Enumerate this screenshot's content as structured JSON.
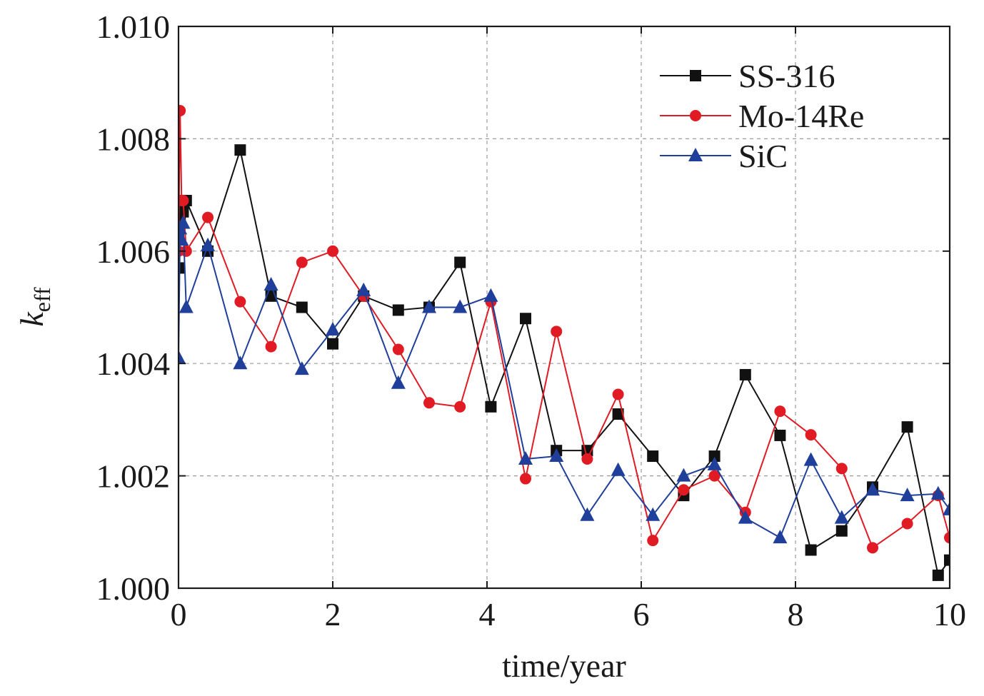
{
  "chart_data": {
    "type": "line",
    "xlabel": "time/year",
    "ylabel": {
      "main": "k",
      "sub": "eff"
    },
    "xlim": [
      0,
      10
    ],
    "ylim": [
      1.0,
      1.01
    ],
    "xticks": [
      0,
      2,
      4,
      6,
      8,
      10
    ],
    "xtick_labels": [
      "0",
      "2",
      "4",
      "6",
      "8",
      "10"
    ],
    "yticks": [
      1.0,
      1.002,
      1.004,
      1.006,
      1.008,
      1.01
    ],
    "ytick_labels": [
      "1.000",
      "1.002",
      "1.004",
      "1.006",
      "1.008",
      "1.010"
    ],
    "grid": true,
    "legend_position": "top-right",
    "series": [
      {
        "name": "SS-316",
        "color": "#111111",
        "marker": "square",
        "x": [
          0.0,
          0.02,
          0.04,
          0.06,
          0.1,
          0.38,
          0.8,
          1.2,
          1.6,
          2.0,
          2.4,
          2.85,
          3.25,
          3.65,
          4.05,
          4.5,
          4.9,
          5.3,
          5.7,
          6.15,
          6.55,
          6.95,
          7.35,
          7.8,
          8.2,
          8.6,
          9.0,
          9.45,
          9.85,
          10.0
        ],
        "y": [
          1.0057,
          1.0066,
          1.0069,
          1.0067,
          1.0069,
          1.006,
          1.0078,
          1.0052,
          1.005,
          1.00435,
          1.0052,
          1.00495,
          1.005,
          1.0058,
          1.00323,
          1.0048,
          1.00245,
          1.00245,
          1.0031,
          1.00235,
          1.00165,
          1.00235,
          1.0038,
          1.00272,
          1.00068,
          1.00102,
          1.0018,
          1.00287,
          1.00023,
          1.0005
        ]
      },
      {
        "name": "Mo-14Re",
        "color": "#e01b24",
        "marker": "circle",
        "x": [
          0.0,
          0.02,
          0.04,
          0.06,
          0.1,
          0.38,
          0.8,
          1.2,
          1.6,
          2.0,
          2.4,
          2.85,
          3.25,
          3.65,
          4.05,
          4.5,
          4.9,
          5.3,
          5.7,
          6.15,
          6.55,
          6.95,
          7.35,
          7.8,
          8.2,
          8.6,
          9.0,
          9.45,
          9.85,
          10.0
        ],
        "y": [
          1.006,
          1.0085,
          1.0069,
          1.0069,
          1.006,
          1.0066,
          1.0051,
          1.0043,
          1.0058,
          1.006,
          1.0052,
          1.00425,
          1.0033,
          1.00323,
          1.0051,
          1.00195,
          1.00457,
          1.0023,
          1.00345,
          1.00085,
          1.00175,
          1.002,
          1.00135,
          1.00315,
          1.00273,
          1.00213,
          1.00072,
          1.00115,
          1.00165,
          1.0009
        ]
      },
      {
        "name": "SiC",
        "color": "#1f3f9a",
        "marker": "triangle",
        "x": [
          0.0,
          0.02,
          0.04,
          0.06,
          0.1,
          0.38,
          0.8,
          1.2,
          1.6,
          2.0,
          2.4,
          2.85,
          3.25,
          3.65,
          4.05,
          4.5,
          4.9,
          5.3,
          5.7,
          6.15,
          6.55,
          6.95,
          7.35,
          7.8,
          8.2,
          8.6,
          9.0,
          9.45,
          9.85,
          10.0
        ],
        "y": [
          1.0041,
          1.0064,
          1.0062,
          1.0065,
          1.005,
          1.0061,
          1.004,
          1.0054,
          1.0039,
          1.0046,
          1.0053,
          1.00365,
          1.005,
          1.005,
          1.0052,
          1.0023,
          1.00235,
          1.0013,
          1.0021,
          1.0013,
          1.002,
          1.0022,
          1.00125,
          1.0009,
          1.00228,
          1.00125,
          1.00175,
          1.00165,
          1.00168,
          1.0014
        ]
      }
    ]
  }
}
